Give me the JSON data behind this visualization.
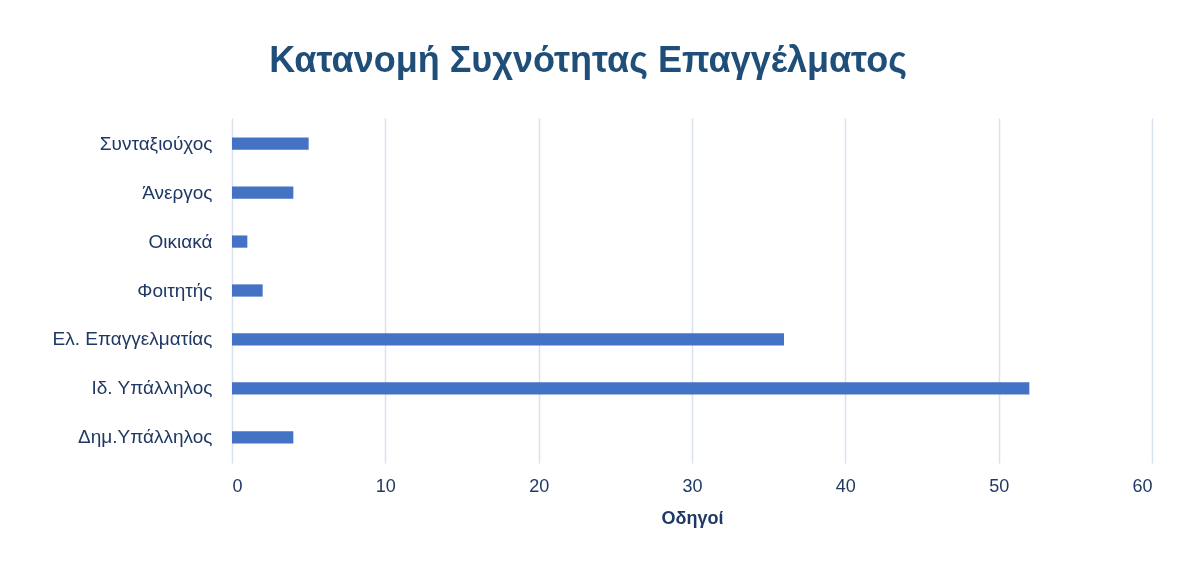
{
  "chart_data": {
    "type": "bar",
    "orientation": "horizontal",
    "title": "Κατανομή Συχνότητας Επαγγέλματος",
    "xlabel": "Οδηγοί",
    "categories": [
      "Συνταξιούχος",
      "Άνεργος",
      "Οικιακά",
      "Φοιτητής",
      "Ελ. Επαγγελματίας",
      "Ιδ. Υπάλληλος",
      "Δημ.Υπάλληλος"
    ],
    "values": [
      5,
      4,
      1,
      2,
      36,
      52,
      4
    ],
    "color": "#4472c4",
    "xlim": [
      0,
      60
    ],
    "xticks": [
      0,
      10,
      20,
      30,
      40,
      50,
      60
    ],
    "grid": "x"
  }
}
